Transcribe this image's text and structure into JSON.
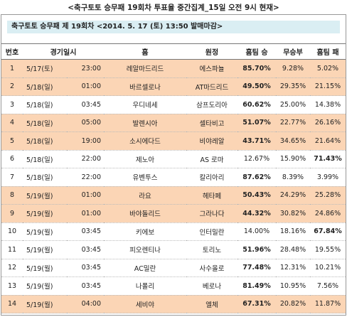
{
  "header": {
    "title": "<축구토토 승무패 19회차 투표율 중간집계_15일 오전 9시 현재>",
    "subtitle": "축구토토 승무패 제 19회차 <2014. 5. 17 (토) 13:50 발매마감>"
  },
  "table": {
    "columns": [
      "번호",
      "경기일시",
      "홈",
      "원정",
      "홈팀 승",
      "무승부",
      "홈팀 패"
    ],
    "rows": [
      [
        "1",
        "5/17(토)",
        "23:00",
        "레알마드리드",
        "에스파뇰",
        "85.70%",
        "9.28%",
        "5.02%"
      ],
      [
        "2",
        "5/18(일)",
        "01:00",
        "바르셀로나",
        "AT마드리드",
        "49.50%",
        "29.35%",
        "21.15%"
      ],
      [
        "3",
        "5/18(일)",
        "03:45",
        "우디네세",
        "삼프도리아",
        "60.62%",
        "25.00%",
        "14.38%"
      ],
      [
        "4",
        "5/18(일)",
        "05:00",
        "발렌시아",
        "셀타비고",
        "51.07%",
        "22.77%",
        "26.16%"
      ],
      [
        "5",
        "5/18(일)",
        "19:00",
        "소시에다드",
        "비야레알",
        "43.71%",
        "34.65%",
        "21.64%"
      ],
      [
        "6",
        "5/18(일)",
        "22:00",
        "제노아",
        "AS 로마",
        "12.67%",
        "15.90%",
        "71.43%"
      ],
      [
        "7",
        "5/18(일)",
        "22:00",
        "유벤투스",
        "칼리아리",
        "87.62%",
        "8.39%",
        "3.99%"
      ],
      [
        "8",
        "5/19(월)",
        "01:00",
        "라요",
        "헤타페",
        "50.43%",
        "24.29%",
        "25.28%"
      ],
      [
        "9",
        "5/19(월)",
        "01:00",
        "바야돌리드",
        "그라나다",
        "44.32%",
        "30.82%",
        "24.86%"
      ],
      [
        "10",
        "5/19(월)",
        "03:45",
        "키에보",
        "인터밀란",
        "14.00%",
        "18.16%",
        "67.84%"
      ],
      [
        "11",
        "5/19(월)",
        "03:45",
        "피오렌티나",
        "토리노",
        "51.96%",
        "28.48%",
        "19.55%"
      ],
      [
        "12",
        "5/19(월)",
        "03:45",
        "AC밀란",
        "사수올로",
        "77.48%",
        "12.31%",
        "10.21%"
      ],
      [
        "13",
        "5/19(월)",
        "03:45",
        "나폴리",
        "베로나",
        "81.49%",
        "10.95%",
        "7.56%"
      ],
      [
        "14",
        "5/19(월)",
        "04:00",
        "세비야",
        "엘체",
        "67.31%",
        "20.82%",
        "11.87%"
      ]
    ],
    "row_colors": [
      "#fbd5b5",
      "#fbd5b5",
      null,
      "#fbd5b5",
      "#fbd5b5",
      null,
      null,
      "#fbd5b5",
      "#fbd5b5",
      null,
      null,
      null,
      null,
      "#fbd5b5"
    ]
  }
}
